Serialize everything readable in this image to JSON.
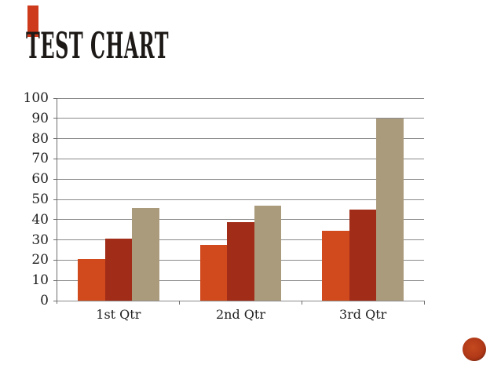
{
  "slide": {
    "title": "TEST CHART",
    "background_color": "#ffffff",
    "title_color": "#1c1917",
    "accent_bar_color": "#ce3b1c",
    "badge_fill_color": "#b23a18",
    "badge_ring_color": "#7e2610"
  },
  "chart_data": {
    "type": "bar",
    "title": "",
    "categories": [
      "1st Qtr",
      "2nd Qtr",
      "3rd Qtr"
    ],
    "series": [
      {
        "color": "#d04a1d",
        "values": [
          20.4,
          27.4,
          34.6
        ]
      },
      {
        "color": "#a12c17",
        "values": [
          30.6,
          38.6,
          45
        ]
      },
      {
        "color": "#ab9b7d",
        "values": [
          45.9,
          46.9,
          90
        ]
      }
    ],
    "ylim": [
      0,
      100
    ],
    "ytick_step": 10,
    "ytick_labels": [
      "0",
      "10",
      "20",
      "30",
      "40",
      "50",
      "60",
      "70",
      "80",
      "90",
      "100"
    ],
    "grid": true,
    "legend": false,
    "gridline_color": "#8a8a8a",
    "axis_color": "#6e6e6e",
    "label_color": "#1f1f1f"
  }
}
